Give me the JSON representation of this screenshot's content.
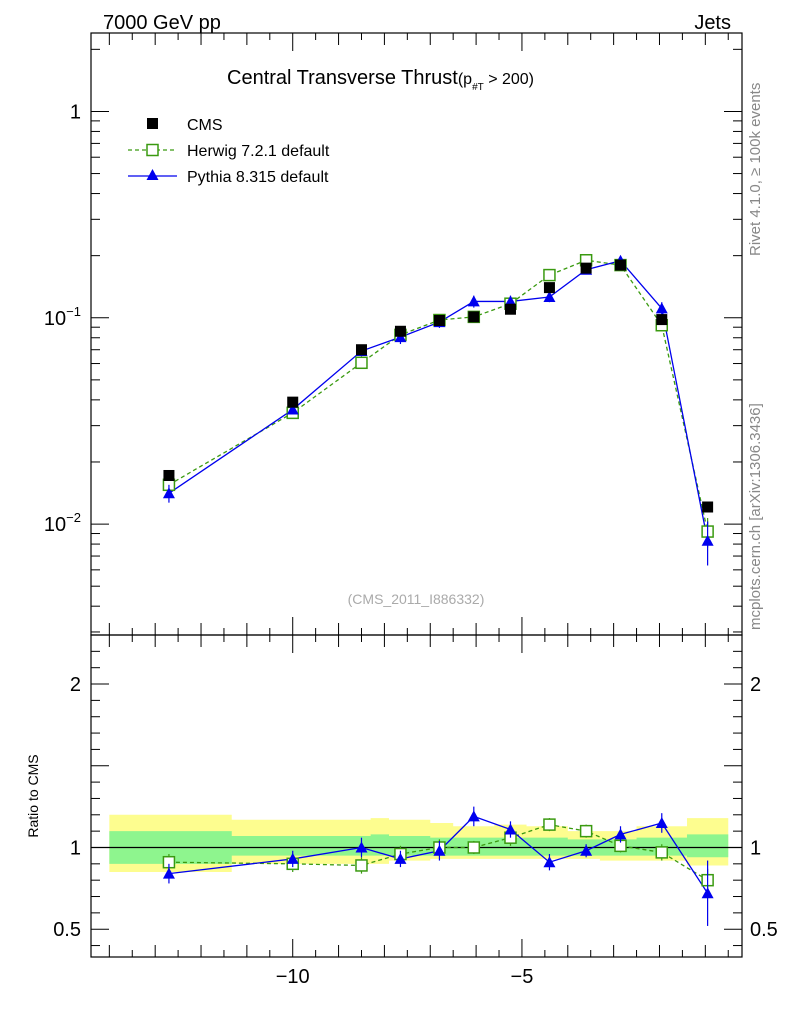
{
  "header": {
    "left": "7000 GeV pp",
    "right": "Jets"
  },
  "side_labels": {
    "rivet": "Rivet 4.1.0, ≥ 100k events",
    "mcplots": "mcplots.cern.ch [arXiv:1306.3436]"
  },
  "colors": {
    "cms": "#000000",
    "herwig": "#3a9a10",
    "pythia": "#0000ee",
    "band_yellow": "#fdfd8f",
    "band_green": "#8ef58e"
  },
  "chart_data": {
    "type": "scatter",
    "title": "Central Transverse Thrust",
    "title_suffix_main": "(p",
    "title_suffix_sub": "#T",
    "title_suffix_end": " > 200)",
    "watermark": "(CMS_2011_I886332)",
    "xlabel": "",
    "xlim": [
      -14.4,
      -0.2
    ],
    "x_ticks": [
      -10,
      -5
    ],
    "x_tick_labels": [
      "−10",
      "−5"
    ],
    "main": {
      "yscale": "log",
      "ylim": [
        0.0029,
        2.4
      ],
      "y_ticks": [
        {
          "value": 1,
          "base": "1",
          "exp": ""
        },
        {
          "value": 0.1,
          "base": "10",
          "exp": "−1"
        },
        {
          "value": 0.01,
          "base": "10",
          "exp": "−2"
        }
      ]
    },
    "ratio": {
      "ylabel": "Ratio to CMS",
      "ylim": [
        0.33,
        2.3
      ],
      "y_ticks": [
        {
          "value": 2,
          "label": "2"
        },
        {
          "value": 1,
          "label": "1"
        },
        {
          "value": 0.5,
          "label": "0.5"
        }
      ]
    },
    "x": [
      -12.7,
      -10.0,
      -8.5,
      -7.65,
      -6.8,
      -6.05,
      -5.25,
      -4.4,
      -3.6,
      -2.85,
      -1.95,
      -0.95
    ],
    "bin_edges": [
      -14.0,
      -11.33,
      -8.3,
      -7.9,
      -7.0,
      -6.5,
      -5.6,
      -4.9,
      -4.0,
      -3.3,
      -2.5,
      -1.4,
      -0.5
    ],
    "legend": [
      "CMS",
      "Herwig 7.2.1 default",
      "Pythia 8.315 default"
    ],
    "series": [
      {
        "name": "CMS",
        "values": [
          0.0172,
          0.039,
          0.07,
          0.086,
          0.097,
          0.101,
          0.11,
          0.14,
          0.174,
          0.18,
          0.098,
          0.0121
        ]
      },
      {
        "name": "Herwig 7.2.1 default",
        "values": [
          0.0155,
          0.0346,
          0.0605,
          0.0826,
          0.0975,
          0.101,
          0.117,
          0.161,
          0.19,
          0.18,
          0.092,
          0.0092
        ],
        "errors": [
          0.001,
          0.0018,
          0.004,
          0.004,
          0.004,
          0.004,
          0.004,
          0.005,
          0.006,
          0.006,
          0.005,
          0.0015
        ]
      },
      {
        "name": "Pythia 8.315 default",
        "values": [
          0.0141,
          0.0359,
          0.069,
          0.0806,
          0.0953,
          0.12,
          0.12,
          0.126,
          0.171,
          0.189,
          0.111,
          0.0083
        ],
        "errors": [
          0.0014,
          0.0018,
          0.004,
          0.006,
          0.006,
          0.008,
          0.008,
          0.007,
          0.007,
          0.008,
          0.008,
          0.002
        ]
      }
    ],
    "ratios": {
      "herwig": [
        0.91,
        0.9,
        0.89,
        0.96,
        1.0,
        1.0,
        1.06,
        1.14,
        1.1,
        1.01,
        0.97,
        0.8
      ],
      "herwig_err": [
        0.05,
        0.05,
        0.05,
        0.05,
        0.05,
        0.04,
        0.05,
        0.04,
        0.04,
        0.04,
        0.05,
        0.07
      ],
      "pythia": [
        0.84,
        0.93,
        1.0,
        0.93,
        0.98,
        1.19,
        1.11,
        0.91,
        0.98,
        1.08,
        1.15,
        0.72
      ],
      "pythia_err": [
        0.06,
        0.05,
        0.06,
        0.05,
        0.06,
        0.06,
        0.05,
        0.05,
        0.04,
        0.05,
        0.06,
        0.2
      ],
      "band_yellow_up": [
        1.2,
        1.17,
        1.18,
        1.17,
        1.15,
        1.13,
        1.14,
        1.13,
        1.1,
        1.1,
        1.13,
        1.18
      ],
      "band_yellow_down": [
        0.85,
        0.9,
        0.9,
        0.92,
        0.93,
        0.93,
        0.93,
        0.93,
        0.93,
        0.92,
        0.92,
        0.89
      ],
      "band_green_up": [
        1.1,
        1.07,
        1.08,
        1.07,
        1.06,
        1.06,
        1.06,
        1.06,
        1.05,
        1.05,
        1.06,
        1.08
      ],
      "band_green_down": [
        0.9,
        0.95,
        0.95,
        0.95,
        0.95,
        0.95,
        0.95,
        0.95,
        0.95,
        0.95,
        0.95,
        0.94
      ]
    }
  }
}
